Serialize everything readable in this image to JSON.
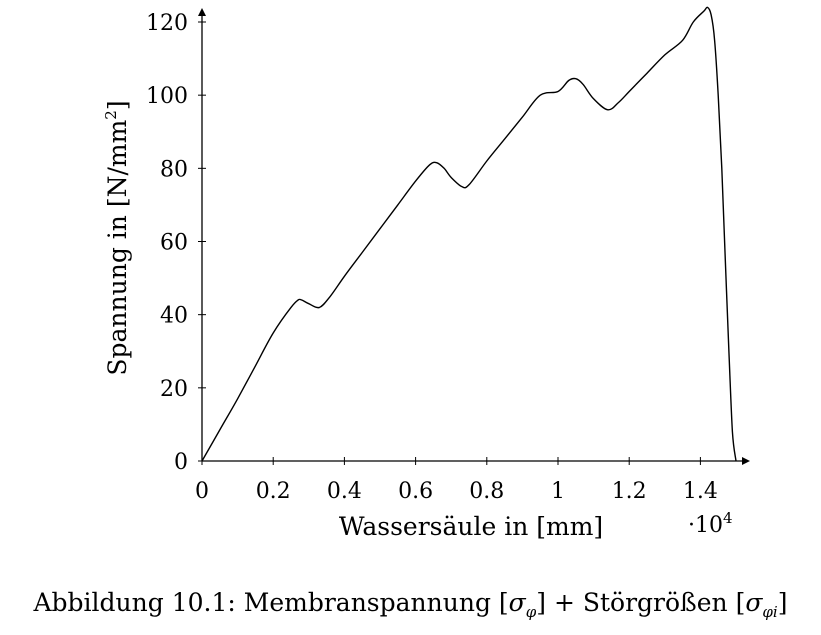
{
  "chart_data": {
    "type": "line",
    "title": "",
    "xlabel": "Wassersäule in [mm]",
    "ylabel": "Spannung in [N/mm²]",
    "ylabel_base": "Spannung in [N/mm",
    "ylabel_sup": "2",
    "ylabel_end": "]",
    "x_scale_label": "·10",
    "x_scale_exp": "4",
    "xlim": [
      0,
      1.5
    ],
    "ylim": [
      0,
      120
    ],
    "x_ticks": [
      0,
      0.2,
      0.4,
      0.6,
      0.8,
      1,
      1.2,
      1.4
    ],
    "x_tick_labels": [
      "0",
      "0.2",
      "0.4",
      "0.6",
      "0.8",
      "1",
      "1.2",
      "1.4"
    ],
    "y_ticks": [
      0,
      20,
      40,
      60,
      80,
      100,
      120
    ],
    "y_tick_labels": [
      "0",
      "20",
      "40",
      "60",
      "80",
      "100",
      "120"
    ],
    "grid": false,
    "series": [
      {
        "name": "Spannung",
        "color": "#000000",
        "x": [
          0,
          0.05,
          0.1,
          0.15,
          0.2,
          0.25,
          0.27,
          0.28,
          0.3,
          0.33,
          0.36,
          0.4,
          0.45,
          0.5,
          0.55,
          0.6,
          0.64,
          0.66,
          0.68,
          0.7,
          0.73,
          0.75,
          0.8,
          0.85,
          0.9,
          0.95,
          1.0,
          1.03,
          1.05,
          1.07,
          1.1,
          1.14,
          1.17,
          1.2,
          1.25,
          1.3,
          1.35,
          1.38,
          1.41,
          1.42,
          1.43,
          1.44,
          1.45,
          1.46,
          1.47,
          1.48,
          1.49,
          1.5
        ],
        "y": [
          0,
          8.5,
          17,
          26,
          35,
          42,
          44,
          44,
          43,
          42,
          45,
          50.5,
          57,
          63.5,
          70,
          76.5,
          81,
          81.5,
          80,
          77.5,
          75,
          75.5,
          82,
          88,
          94,
          100,
          101,
          104,
          104.5,
          103,
          99,
          96,
          98,
          101,
          106,
          111,
          115,
          120,
          123,
          124,
          122,
          115,
          100,
          80,
          55,
          30,
          8,
          0
        ]
      }
    ]
  },
  "caption": {
    "prefix": "Abbildung 10.1: Membranspannung [",
    "sigma1": "σ",
    "sub1": "φ",
    "mid": "] + Störgrößen [",
    "sigma2": "σ",
    "sub2": "φi",
    "suffix": "]"
  }
}
